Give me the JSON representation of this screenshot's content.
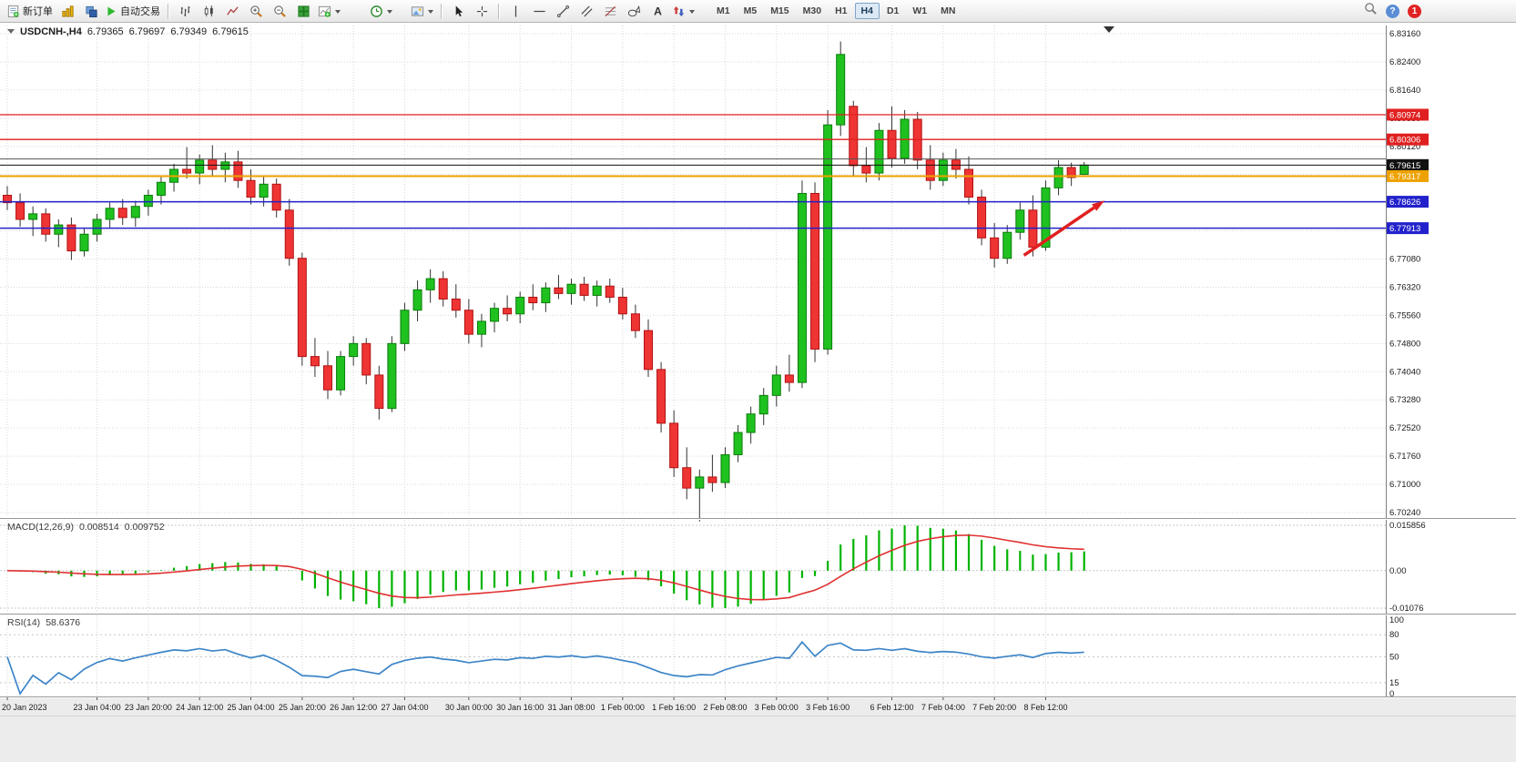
{
  "toolbar": {
    "new_order_label": "新订单",
    "auto_trading_label": "自动交易",
    "timeframes": [
      "M1",
      "M5",
      "M15",
      "M30",
      "H1",
      "H4",
      "D1",
      "W1",
      "MN"
    ],
    "active_timeframe": "H4",
    "badge_count": "1",
    "icon_glyphs": {
      "text_tool": "A",
      "help": "?"
    }
  },
  "chart": {
    "symbol_period": "USDCNH-,H4",
    "open": "6.79365",
    "high": "6.79697",
    "low": "6.79349",
    "close": "6.79615"
  },
  "price_axis": {
    "labels": [
      "6.83160",
      "6.82400",
      "6.81640",
      "6.80880",
      "6.80120",
      "6.79360",
      "6.78600",
      "6.77840",
      "6.77080",
      "6.76320",
      "6.75560",
      "6.74800",
      "6.74040",
      "6.73280",
      "6.72520",
      "6.71760",
      "6.71000",
      "6.70240"
    ]
  },
  "levels": [
    {
      "price": 6.80974,
      "label": "6.80974",
      "color": "#e02020",
      "width": 1.3
    },
    {
      "price": 6.80306,
      "label": "6.80306",
      "color": "#e02020",
      "width": 1.3
    },
    {
      "price": 6.7978,
      "label": "",
      "color": "#555555",
      "width": 1
    },
    {
      "price": 6.79615,
      "label": "6.79615",
      "color": "#111111",
      "width": 1
    },
    {
      "price": 6.79317,
      "label": "6.79317",
      "color": "#eea200",
      "width": 2
    },
    {
      "price": 6.78626,
      "label": "6.78626",
      "color": "#2222cc",
      "width": 1.5
    },
    {
      "price": 6.77913,
      "label": "6.77913",
      "color": "#2222cc",
      "width": 1.5
    }
  ],
  "trend_arrow": {
    "from_index": 79.3,
    "from_price": 6.7718,
    "to_index": 85.6,
    "to_price": 6.7866,
    "color": "#e02020"
  },
  "macd_panel": {
    "name": "MACD(12,26,9)",
    "value_main": "0.008514",
    "value_signal": "0.009752",
    "axis_top": "0.015856",
    "axis_zero": "0.00",
    "axis_bottom": "-0.01076"
  },
  "rsi_panel": {
    "name": "RSI(14)",
    "value": "58.6376",
    "axis_labels": [
      "100",
      "80",
      "50",
      "15",
      "0"
    ],
    "axis_values": [
      100,
      80,
      50,
      15,
      0
    ],
    "levels": [
      80,
      50,
      15
    ]
  },
  "time_axis": {
    "labels": [
      "20 Jan 2023",
      "23 Jan 04:00",
      "23 Jan 20:00",
      "24 Jan 12:00",
      "25 Jan 04:00",
      "25 Jan 20:00",
      "26 Jan 12:00",
      "27 Jan 04:00",
      "30 Jan 00:00",
      "30 Jan 16:00",
      "31 Jan 08:00",
      "1 Feb 00:00",
      "1 Feb 16:00",
      "2 Feb 08:00",
      "3 Feb 00:00",
      "3 Feb 16:00",
      "6 Feb 12:00",
      "7 Feb 04:00",
      "7 Feb 20:00",
      "8 Feb 12:00"
    ],
    "indices": [
      0,
      7,
      11,
      15,
      19,
      23,
      27,
      31,
      36,
      40,
      44,
      48,
      52,
      56,
      60,
      64,
      69,
      73,
      77,
      81
    ]
  },
  "colors": {
    "up_fill": "#1fc11f",
    "up_border": "#0b7d0b",
    "down_fill": "#ef3434",
    "down_border": "#b11212",
    "wick": "#333333",
    "grid": "#d9d9d9",
    "axis_text": "#1a1a1a",
    "macd_hist": "#00b300",
    "macd_signal": "#e03030",
    "rsi_line": "#3d85c8"
  },
  "chart_data": {
    "type": "candlestick",
    "symbol": "USDCNH",
    "period": "H4",
    "y_range": [
      6.7024,
      6.8316
    ],
    "price_step": 0.0076,
    "candles": [
      [
        6.788,
        6.7905,
        6.784,
        6.786
      ],
      [
        6.786,
        6.7885,
        6.7795,
        6.7815
      ],
      [
        6.7815,
        6.785,
        6.777,
        6.783
      ],
      [
        6.783,
        6.7845,
        6.7755,
        6.7775
      ],
      [
        6.7775,
        6.7815,
        6.774,
        6.78
      ],
      [
        6.78,
        6.782,
        6.7705,
        6.773
      ],
      [
        6.773,
        6.779,
        6.7715,
        6.7775
      ],
      [
        6.7775,
        6.783,
        6.7755,
        6.7815
      ],
      [
        6.7815,
        6.786,
        6.779,
        6.7845
      ],
      [
        6.7845,
        6.787,
        6.78,
        6.782
      ],
      [
        6.782,
        6.7865,
        6.7795,
        6.785
      ],
      [
        6.785,
        6.7895,
        6.7825,
        6.788
      ],
      [
        6.788,
        6.793,
        6.7855,
        6.7915
      ],
      [
        6.7915,
        6.7965,
        6.789,
        6.795
      ],
      [
        6.795,
        6.801,
        6.7925,
        6.794
      ],
      [
        6.794,
        6.799,
        6.791,
        6.7975
      ],
      [
        6.7975,
        6.8015,
        6.793,
        6.795
      ],
      [
        6.795,
        6.7995,
        6.7915,
        6.797
      ],
      [
        6.797,
        6.8,
        6.79,
        6.792
      ],
      [
        6.792,
        6.795,
        6.7855,
        6.7875
      ],
      [
        6.7875,
        6.793,
        6.785,
        6.791
      ],
      [
        6.791,
        6.7925,
        6.782,
        6.784
      ],
      [
        6.784,
        6.787,
        6.769,
        6.771
      ],
      [
        6.771,
        6.7725,
        6.742,
        6.7445
      ],
      [
        6.7445,
        6.7495,
        6.739,
        6.742
      ],
      [
        6.742,
        6.746,
        6.733,
        6.7355
      ],
      [
        6.7355,
        6.746,
        6.734,
        6.7445
      ],
      [
        6.7445,
        6.75,
        6.742,
        6.748
      ],
      [
        6.748,
        6.7495,
        6.737,
        6.7395
      ],
      [
        6.7395,
        6.742,
        6.7275,
        6.7305
      ],
      [
        6.7305,
        6.75,
        6.7295,
        6.748
      ],
      [
        6.748,
        6.759,
        6.746,
        6.757
      ],
      [
        6.757,
        6.765,
        6.754,
        6.7625
      ],
      [
        6.7625,
        6.768,
        6.759,
        6.7655
      ],
      [
        6.7655,
        6.7675,
        6.758,
        6.76
      ],
      [
        6.76,
        6.764,
        6.755,
        6.757
      ],
      [
        6.757,
        6.76,
        6.748,
        6.7505
      ],
      [
        6.7505,
        6.756,
        6.747,
        6.754
      ],
      [
        6.754,
        6.759,
        6.751,
        6.7575
      ],
      [
        6.7575,
        6.761,
        6.754,
        6.756
      ],
      [
        6.756,
        6.762,
        6.7535,
        6.7605
      ],
      [
        6.7605,
        6.764,
        6.757,
        6.759
      ],
      [
        6.759,
        6.7645,
        6.7565,
        6.763
      ],
      [
        6.763,
        6.7665,
        6.76,
        6.7615
      ],
      [
        6.7615,
        6.7655,
        6.7585,
        6.764
      ],
      [
        6.764,
        6.766,
        6.7595,
        6.761
      ],
      [
        6.761,
        6.765,
        6.758,
        6.7635
      ],
      [
        6.7635,
        6.7655,
        6.759,
        6.7605
      ],
      [
        6.7605,
        6.763,
        6.7545,
        6.756
      ],
      [
        6.756,
        6.7585,
        6.7495,
        6.7515
      ],
      [
        6.7515,
        6.7545,
        6.739,
        6.741
      ],
      [
        6.741,
        6.743,
        6.724,
        6.7265
      ],
      [
        6.7265,
        6.73,
        6.712,
        6.7145
      ],
      [
        6.7145,
        6.72,
        6.706,
        6.709
      ],
      [
        6.709,
        6.714,
        6.7,
        6.712
      ],
      [
        6.712,
        6.718,
        6.708,
        6.7105
      ],
      [
        6.7105,
        6.72,
        6.709,
        6.718
      ],
      [
        6.718,
        6.726,
        6.716,
        6.724
      ],
      [
        6.724,
        6.731,
        6.721,
        6.729
      ],
      [
        6.729,
        6.736,
        6.726,
        6.734
      ],
      [
        6.734,
        6.742,
        6.731,
        6.7395
      ],
      [
        6.7395,
        6.745,
        6.735,
        6.7375
      ],
      [
        6.7375,
        6.792,
        6.736,
        6.7885
      ],
      [
        6.7885,
        6.7915,
        6.743,
        6.7465
      ],
      [
        6.7465,
        6.811,
        6.745,
        6.807
      ],
      [
        6.807,
        6.8295,
        6.804,
        6.826
      ],
      [
        6.812,
        6.8135,
        6.793,
        6.796
      ],
      [
        6.796,
        6.801,
        6.7915,
        6.794
      ],
      [
        6.794,
        6.8075,
        6.792,
        6.8055
      ],
      [
        6.8055,
        6.812,
        6.7955,
        6.798
      ],
      [
        6.798,
        6.811,
        6.7965,
        6.8085
      ],
      [
        6.8085,
        6.8105,
        6.795,
        6.7975
      ],
      [
        6.7975,
        6.8015,
        6.7895,
        6.792
      ],
      [
        6.792,
        6.7995,
        6.7905,
        6.7975
      ],
      [
        6.7975,
        6.8005,
        6.7925,
        6.795
      ],
      [
        6.795,
        6.7985,
        6.7855,
        6.7875
      ],
      [
        6.7875,
        6.7895,
        6.7745,
        6.7765
      ],
      [
        6.7765,
        6.7805,
        6.7685,
        6.771
      ],
      [
        6.771,
        6.78,
        6.7695,
        6.778
      ],
      [
        6.778,
        6.786,
        6.776,
        6.784
      ],
      [
        6.784,
        6.788,
        6.7715,
        6.774
      ],
      [
        6.774,
        6.792,
        6.773,
        6.79
      ],
      [
        6.79,
        6.7975,
        6.788,
        6.7955
      ],
      [
        6.7955,
        6.7968,
        6.7905,
        6.7928
      ],
      [
        6.79365,
        6.79697,
        6.79349,
        6.79615
      ]
    ]
  }
}
